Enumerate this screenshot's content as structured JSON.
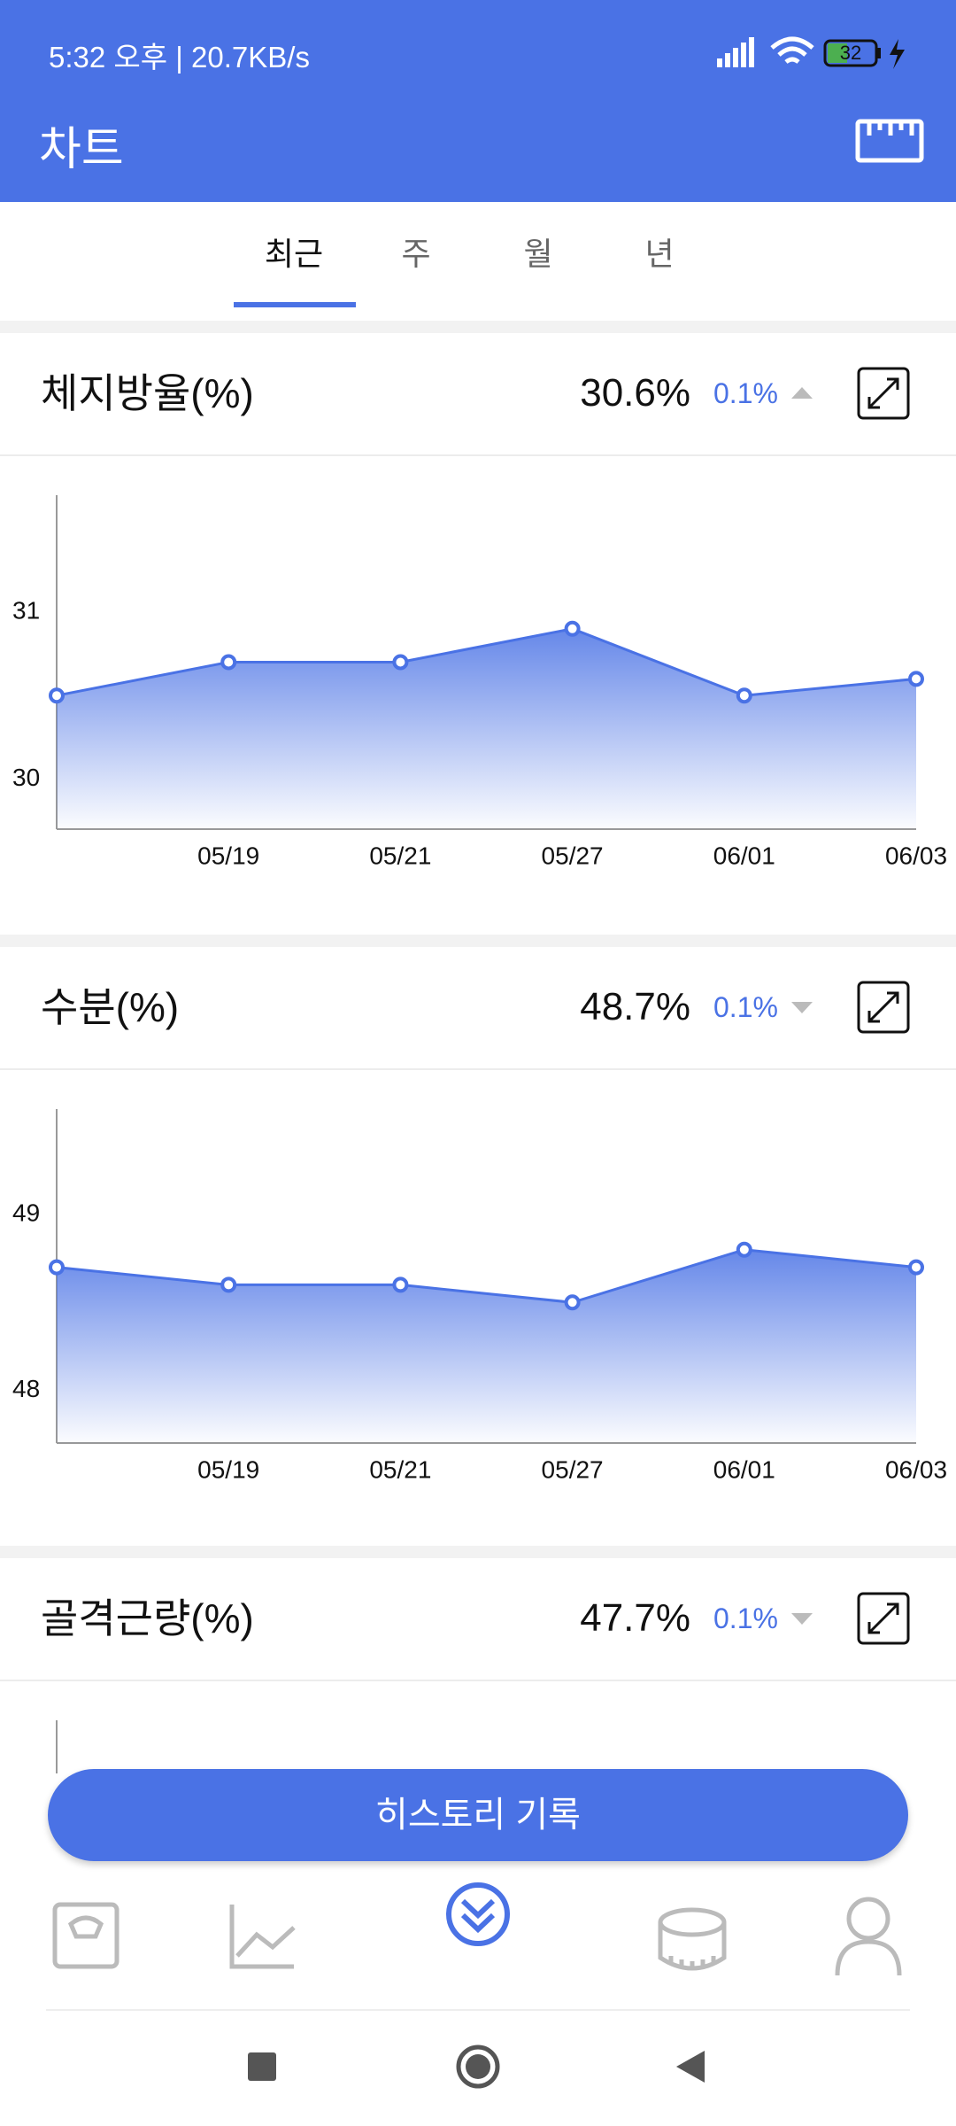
{
  "status_bar": {
    "text": "5:32 오후 | 20.7KB/s",
    "battery": "32"
  },
  "app_bar": {
    "title": "차트"
  },
  "tabs": [
    "최근",
    "주",
    "월",
    "년"
  ],
  "cards": [
    {
      "title": "체지방율(%)",
      "value": "30.6%",
      "change": "0.1%",
      "trend": "up",
      "chart": {
        "type": "line",
        "x": [
          null,
          "05/19",
          "05/21",
          "05/27",
          "06/01",
          "06/03"
        ],
        "values": [
          30.5,
          30.7,
          30.7,
          30.9,
          30.5,
          30.6
        ],
        "ylim": [
          29.7,
          31.7
        ],
        "yticks": [
          30,
          31
        ],
        "color": "#4a72e5"
      }
    },
    {
      "title": "수분(%)",
      "value": "48.7%",
      "change": "0.1%",
      "trend": "down",
      "chart": {
        "type": "line",
        "x": [
          null,
          "05/19",
          "05/21",
          "05/27",
          "06/01",
          "06/03"
        ],
        "values": [
          48.7,
          48.6,
          48.6,
          48.5,
          48.8,
          48.7
        ],
        "ylim": [
          47.7,
          49.6
        ],
        "yticks": [
          48,
          49
        ],
        "color": "#4a72e5"
      }
    },
    {
      "title": "골격근량(%)",
      "value": "47.7%",
      "change": "0.1%",
      "trend": "down"
    }
  ],
  "button": "히스토리 기록"
}
